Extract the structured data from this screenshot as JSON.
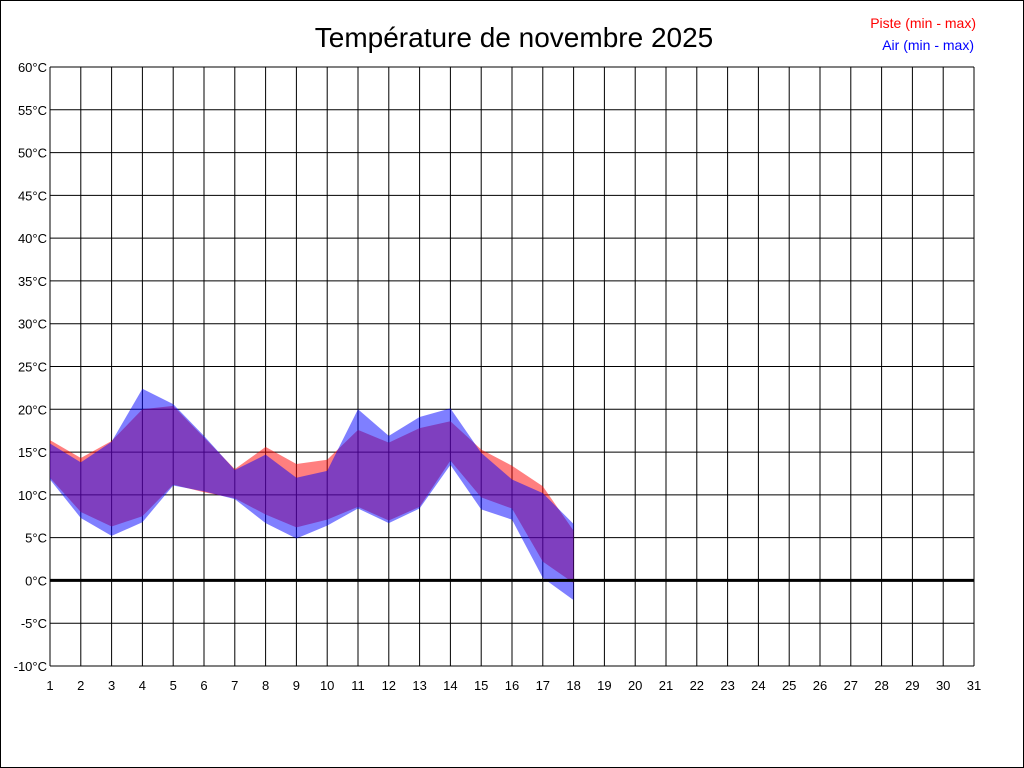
{
  "chart_data": {
    "type": "area",
    "title": "Température de novembre 2025",
    "legend": {
      "placement": "top-right"
    },
    "x": [
      1,
      2,
      3,
      4,
      5,
      6,
      7,
      8,
      9,
      10,
      11,
      12,
      13,
      14,
      15,
      16,
      17,
      18
    ],
    "xlim": [
      1,
      31
    ],
    "x_ticks": [
      "1",
      "2",
      "3",
      "4",
      "5",
      "6",
      "7",
      "8",
      "9",
      "10",
      "11",
      "12",
      "13",
      "14",
      "15",
      "16",
      "17",
      "18",
      "19",
      "20",
      "21",
      "22",
      "23",
      "24",
      "25",
      "26",
      "27",
      "28",
      "29",
      "30",
      "31"
    ],
    "ylim": [
      -10,
      60
    ],
    "y_ticks": [
      {
        "value": 60,
        "label": "60°C"
      },
      {
        "value": 55,
        "label": "55°C"
      },
      {
        "value": 50,
        "label": "50°C"
      },
      {
        "value": 45,
        "label": "45°C"
      },
      {
        "value": 40,
        "label": "40°C"
      },
      {
        "value": 35,
        "label": "35°C"
      },
      {
        "value": 30,
        "label": "30°C"
      },
      {
        "value": 25,
        "label": "25°C"
      },
      {
        "value": 20,
        "label": "20°C"
      },
      {
        "value": 15,
        "label": "15°C"
      },
      {
        "value": 10,
        "label": "10°C"
      },
      {
        "value": 5,
        "label": "5°C"
      },
      {
        "value": 0,
        "label": "0°C"
      },
      {
        "value": -5,
        "label": "-5°C"
      },
      {
        "value": -10,
        "label": "-10°C"
      }
    ],
    "grid": true,
    "zero_line": true,
    "series": [
      {
        "name": "Piste (min - max)",
        "color": "#ff0000",
        "min": [
          12.0,
          8.0,
          6.3,
          7.5,
          11.2,
          10.3,
          9.6,
          7.7,
          6.2,
          7.1,
          8.6,
          7.0,
          8.6,
          14.0,
          9.7,
          8.4,
          2.2,
          -0.3
        ],
        "max": [
          16.4,
          14.3,
          16.3,
          20.0,
          20.4,
          16.7,
          13.0,
          15.6,
          13.6,
          14.1,
          17.6,
          16.1,
          17.8,
          18.6,
          15.3,
          13.4,
          11.0,
          5.8
        ]
      },
      {
        "name": "Air (min - max)",
        "color": "#0000ff",
        "min": [
          11.8,
          7.3,
          5.2,
          6.8,
          11.1,
          10.4,
          9.5,
          6.7,
          4.9,
          6.4,
          8.4,
          6.7,
          8.4,
          13.5,
          8.3,
          7.1,
          0.3,
          -2.3
        ],
        "max": [
          16.0,
          13.8,
          16.2,
          22.4,
          20.6,
          16.9,
          12.9,
          14.7,
          12.0,
          12.8,
          20.0,
          16.9,
          19.1,
          20.1,
          14.9,
          11.8,
          10.2,
          6.6
        ]
      }
    ]
  }
}
